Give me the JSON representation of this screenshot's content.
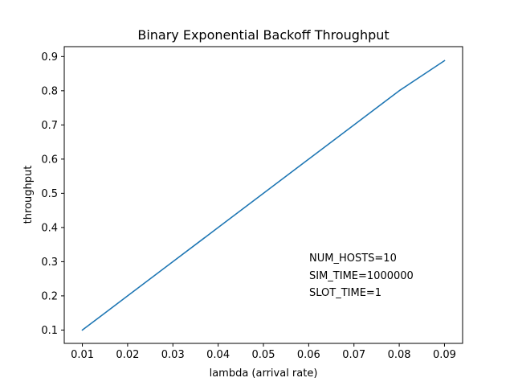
{
  "chart_data": {
    "type": "line",
    "title": "Binary Exponential Backoff Throughput",
    "xlabel": "lambda (arrival rate)",
    "ylabel": "throughput",
    "x_ticks": [
      "0.01",
      "0.02",
      "0.03",
      "0.04",
      "0.05",
      "0.06",
      "0.07",
      "0.08",
      "0.09"
    ],
    "y_ticks": [
      "0.1",
      "0.2",
      "0.3",
      "0.4",
      "0.5",
      "0.6",
      "0.7",
      "0.8",
      "0.9"
    ],
    "xlim": [
      0.006,
      0.094
    ],
    "ylim": [
      0.061,
      0.929
    ],
    "grid": false,
    "legend": "none",
    "series": [
      {
        "color": "#1f77b4",
        "x": [
          0.01,
          0.02,
          0.03,
          0.04,
          0.05,
          0.06,
          0.07,
          0.08,
          0.09
        ],
        "y": [
          0.1,
          0.2,
          0.3,
          0.4,
          0.5,
          0.6,
          0.7,
          0.8,
          0.888
        ]
      }
    ],
    "annotations": [
      "NUM_HOSTS=10",
      "SIM_TIME=1000000",
      "SLOT_TIME=1"
    ]
  }
}
